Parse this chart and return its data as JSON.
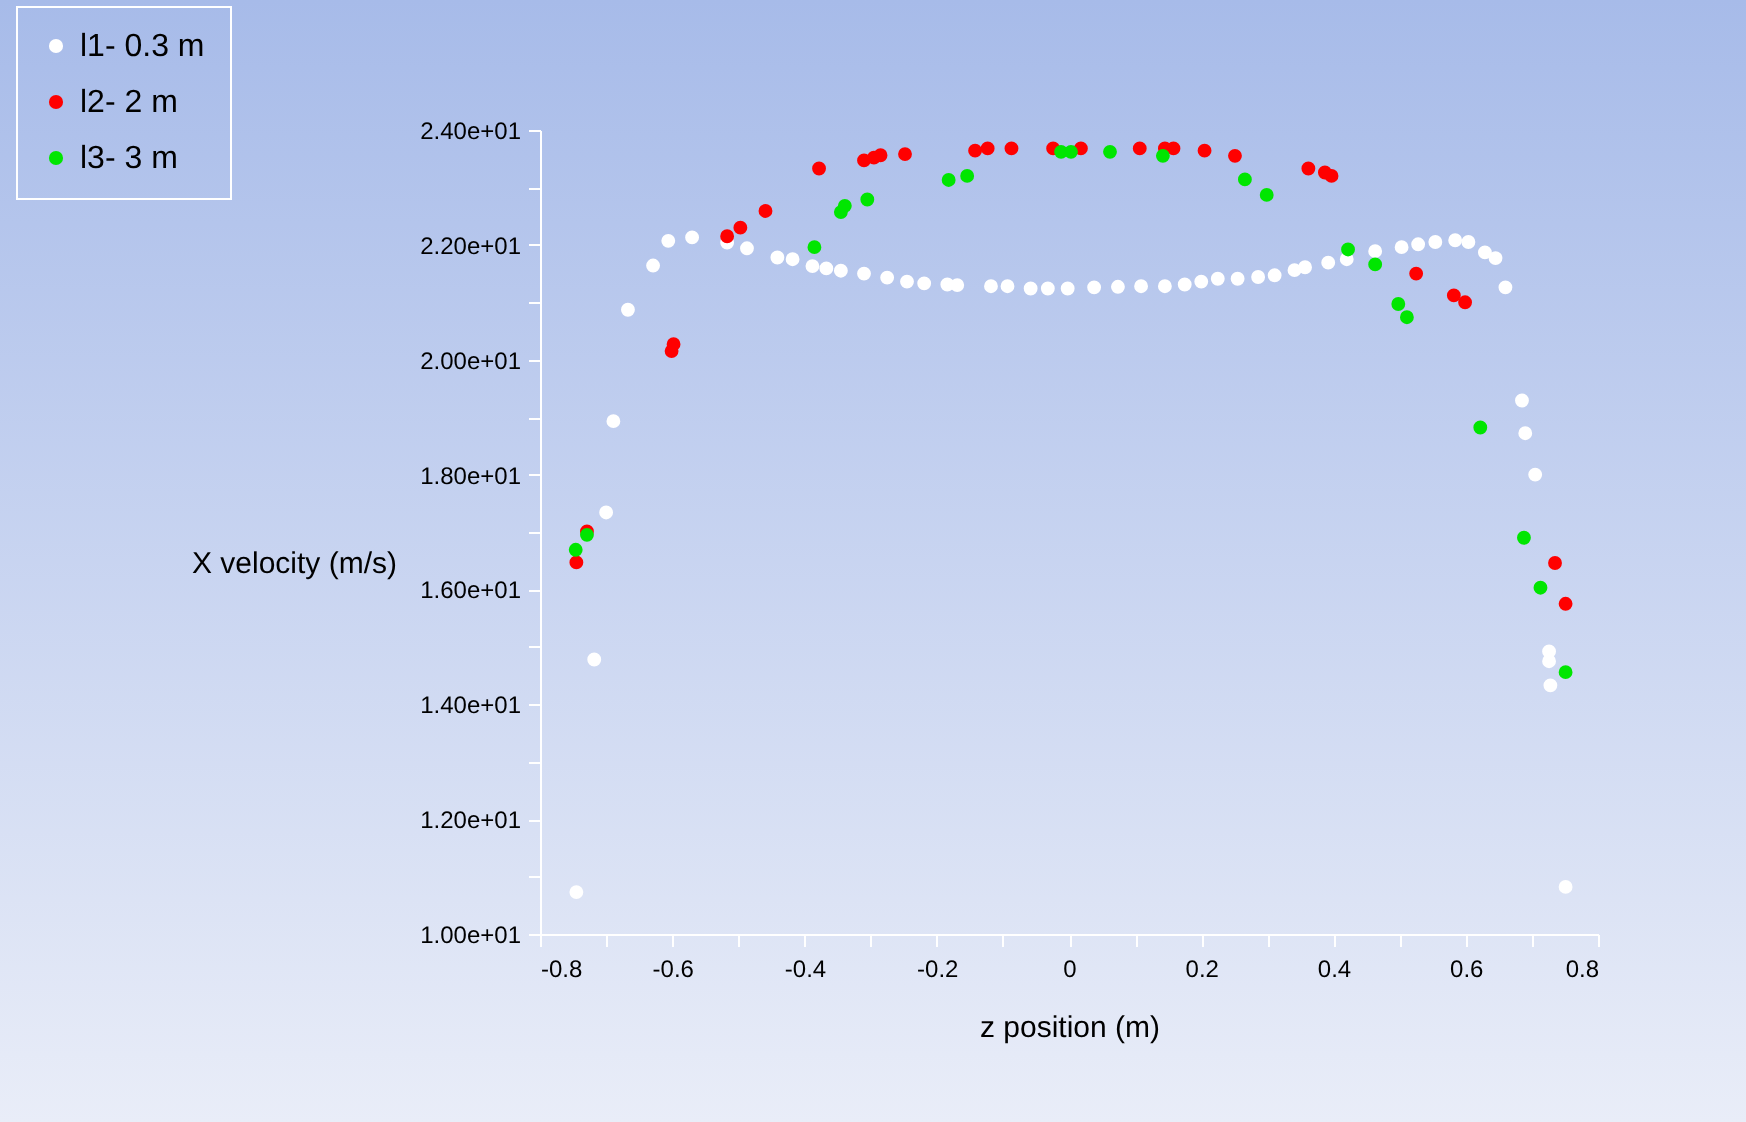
{
  "chart_data": {
    "type": "scatter",
    "xlabel": "z position (m)",
    "ylabel": "X velocity (m/s)",
    "xlim": [
      -0.8,
      0.8
    ],
    "ylim": [
      10,
      24
    ],
    "xticks": [
      -0.8,
      {
        "value": -0.7,
        "label": null
      },
      -0.6,
      {
        "value": -0.5,
        "label": null
      },
      -0.4,
      {
        "value": -0.3,
        "label": null
      },
      -0.2,
      {
        "value": -0.1,
        "label": null
      },
      0,
      {
        "value": 0.1,
        "label": null
      },
      0.2,
      {
        "value": 0.3,
        "label": null
      },
      0.4,
      {
        "value": 0.5,
        "label": null
      },
      0.6,
      {
        "value": 0.7,
        "label": null
      },
      0.8
    ],
    "yticks": [
      {
        "value": 10,
        "label": "1.00e+01"
      },
      {
        "value": 11,
        "label": null
      },
      {
        "value": 12,
        "label": "1.20e+01"
      },
      {
        "value": 13,
        "label": null
      },
      {
        "value": 14,
        "label": "1.40e+01"
      },
      {
        "value": 15,
        "label": null
      },
      {
        "value": 16,
        "label": "1.60e+01"
      },
      {
        "value": 17,
        "label": null
      },
      {
        "value": 18,
        "label": "1.80e+01"
      },
      {
        "value": 19,
        "label": null
      },
      {
        "value": 20,
        "label": "2.00e+01"
      },
      {
        "value": 21,
        "label": null
      },
      {
        "value": 22,
        "label": "2.20e+01"
      },
      {
        "value": 23,
        "label": null
      },
      {
        "value": 24,
        "label": "2.40e+01"
      }
    ],
    "grid": false,
    "legend": "top left",
    "marker": "circle",
    "series": [
      {
        "name": "l1- 0.3 m",
        "color": "#ffffff",
        "x": [
          -0.745,
          -0.718,
          -0.7,
          -0.689,
          -0.667,
          -0.629,
          -0.606,
          -0.57,
          -0.517,
          -0.487,
          -0.441,
          -0.418,
          -0.388,
          -0.367,
          -0.345,
          -0.31,
          -0.275,
          -0.245,
          -0.219,
          -0.184,
          -0.169,
          -0.118,
          -0.093,
          -0.058,
          -0.032,
          -0.002,
          0.038,
          0.074,
          0.109,
          0.145,
          0.175,
          0.2,
          0.225,
          0.255,
          0.286,
          0.311,
          0.341,
          0.357,
          0.392,
          0.42,
          0.463,
          0.503,
          0.528,
          0.554,
          0.584,
          0.604,
          0.629,
          0.645,
          0.66,
          0.685,
          0.69,
          0.705,
          0.726,
          0.726,
          0.728,
          0.751
        ],
        "values": [
          10.73,
          14.78,
          17.34,
          18.93,
          20.87,
          21.64,
          22.07,
          22.13,
          22.04,
          21.94,
          21.78,
          21.75,
          21.63,
          21.59,
          21.55,
          21.5,
          21.43,
          21.36,
          21.33,
          21.31,
          21.3,
          21.28,
          21.28,
          21.24,
          21.24,
          21.24,
          21.26,
          21.27,
          21.28,
          21.28,
          21.31,
          21.36,
          21.41,
          21.41,
          21.44,
          21.47,
          21.56,
          21.61,
          21.69,
          21.75,
          21.89,
          21.96,
          22.01,
          22.05,
          22.08,
          22.05,
          21.87,
          21.77,
          21.26,
          19.29,
          18.72,
          18.0,
          14.92,
          14.75,
          14.33,
          10.82
        ]
      },
      {
        "name": "l2- 2 m",
        "color": "#ff0000",
        "x": [
          -0.745,
          -0.729,
          -0.601,
          -0.598,
          -0.517,
          -0.497,
          -0.459,
          -0.378,
          -0.31,
          -0.295,
          -0.285,
          -0.248,
          -0.142,
          -0.123,
          -0.087,
          -0.024,
          0.018,
          0.107,
          0.145,
          0.158,
          0.205,
          0.251,
          0.362,
          0.387,
          0.397,
          0.525,
          0.582,
          0.599,
          0.735,
          0.751
        ],
        "values": [
          16.47,
          17.01,
          20.15,
          20.27,
          22.15,
          22.3,
          22.59,
          23.33,
          23.47,
          23.52,
          23.56,
          23.58,
          23.64,
          23.68,
          23.68,
          23.68,
          23.68,
          23.68,
          23.68,
          23.68,
          23.64,
          23.55,
          23.33,
          23.26,
          23.2,
          21.5,
          21.12,
          21.0,
          16.46,
          15.75
        ]
      },
      {
        "name": "l3- 3 m",
        "color": "#00e600",
        "x": [
          -0.746,
          -0.729,
          -0.385,
          -0.345,
          -0.339,
          -0.305,
          -0.182,
          -0.154,
          -0.012,
          0.003,
          0.062,
          0.142,
          0.266,
          0.299,
          0.422,
          0.463,
          0.498,
          0.511,
          0.622,
          0.688,
          0.713,
          0.751
        ],
        "values": [
          16.69,
          16.95,
          21.96,
          22.57,
          22.68,
          22.79,
          23.13,
          23.2,
          23.62,
          23.62,
          23.62,
          23.55,
          23.14,
          22.87,
          21.92,
          21.66,
          20.97,
          20.74,
          18.82,
          16.9,
          16.03,
          14.56
        ]
      }
    ]
  }
}
